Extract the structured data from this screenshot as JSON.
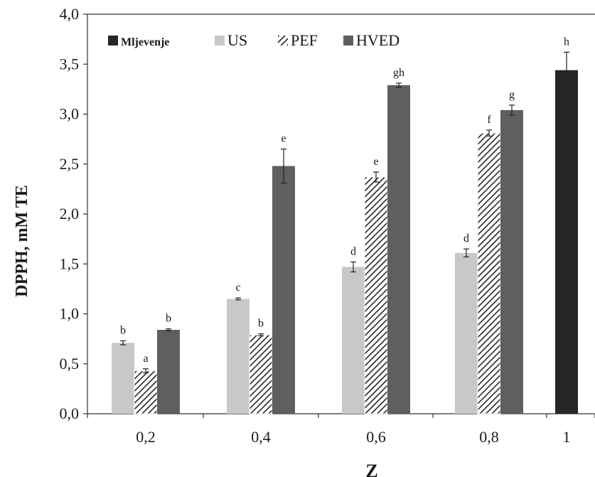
{
  "chart_data": {
    "type": "bar",
    "title": "",
    "xlabel": "Z",
    "ylabel": "DPPH, mM TE",
    "ylim": [
      0,
      4.0
    ],
    "yticks": [
      "0,0",
      "0,5",
      "1,0",
      "1,5",
      "2,0",
      "2,5",
      "3,0",
      "3,5",
      "4,0"
    ],
    "categories": [
      "0,2",
      "0,4",
      "0,6",
      "0,8",
      "1"
    ],
    "legend_position": "top",
    "grid": false,
    "series": [
      {
        "name": "Mljevenje",
        "color": "#262626",
        "pattern": "solid",
        "values": [
          null,
          null,
          null,
          null,
          3.44
        ],
        "errors": [
          null,
          null,
          null,
          null,
          0.18
        ],
        "labels": [
          null,
          null,
          null,
          null,
          "h"
        ]
      },
      {
        "name": "US",
        "color": "#c8c8c8",
        "pattern": "solid",
        "values": [
          0.71,
          1.15,
          1.47,
          1.61,
          null
        ],
        "errors": [
          0.02,
          0.01,
          0.05,
          0.04,
          null
        ],
        "labels": [
          "b",
          "c",
          "d",
          "d",
          null
        ]
      },
      {
        "name": "PEF",
        "color": "#262626",
        "pattern": "hatch",
        "values": [
          0.43,
          0.79,
          2.37,
          2.81,
          null
        ],
        "errors": [
          0.02,
          0.01,
          0.05,
          0.03,
          null
        ],
        "labels": [
          "a",
          "b",
          "e",
          "f",
          null
        ]
      },
      {
        "name": "HVED",
        "color": "#5f5f5f",
        "pattern": "solid",
        "values": [
          0.84,
          2.48,
          3.29,
          3.04,
          null
        ],
        "errors": [
          0.01,
          0.17,
          0.02,
          0.05,
          null
        ],
        "labels": [
          "b",
          "e",
          "gh",
          "g",
          null
        ]
      }
    ]
  }
}
